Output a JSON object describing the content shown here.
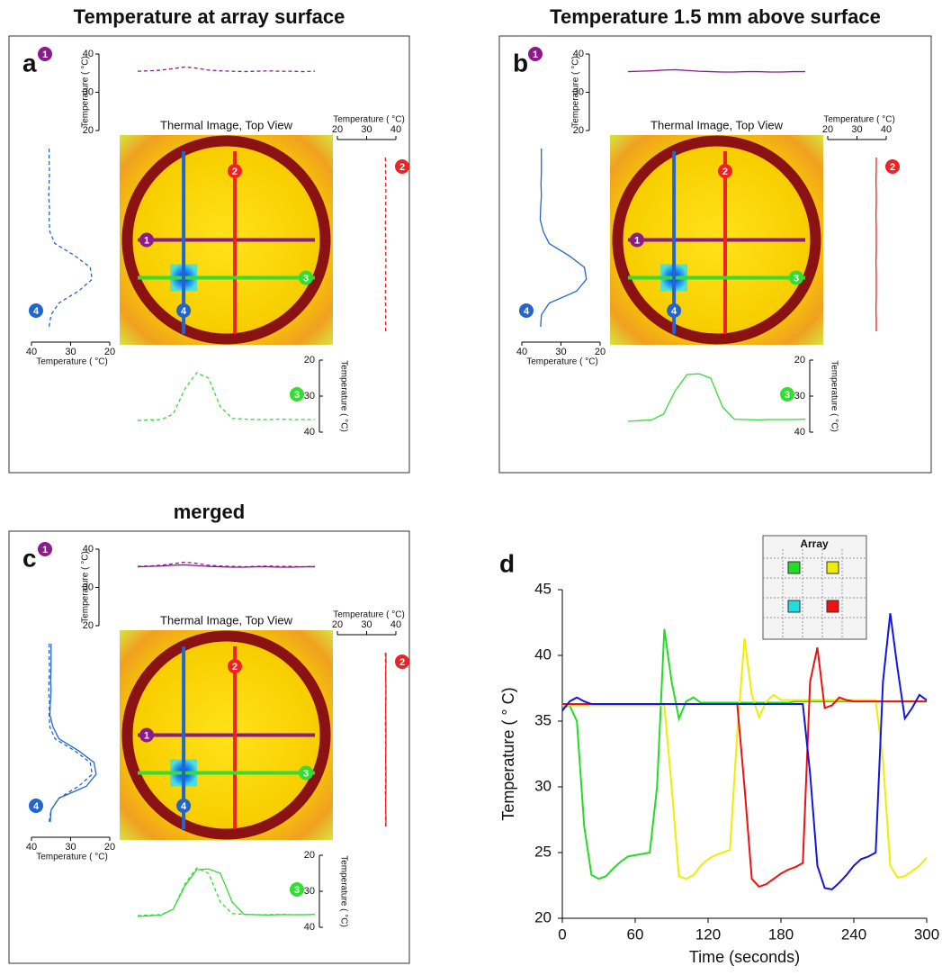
{
  "panels": [
    {
      "title": "Temperature at array surface",
      "letter": "a",
      "image_label": "Thermal Image, Top View",
      "axis_label": "Temperature ( °C)",
      "ticks": [
        20,
        30,
        40
      ],
      "line_style": "dashed",
      "lines": [
        {
          "label": "1",
          "color": "#8b1a8b",
          "values": [
            35.5,
            35.6,
            35.8,
            36.2,
            36.6,
            36.3,
            35.8,
            35.6,
            35.5,
            35.4,
            35.5,
            35.6,
            35.5,
            35.5,
            35.4,
            35.5
          ]
        },
        {
          "label": "2",
          "color": "#ee2222",
          "values": [
            36.4,
            36.5,
            36.5,
            36.6,
            36.5,
            36.5,
            36.4,
            36.5,
            36.5,
            36.6,
            36.5,
            36.5,
            36.4,
            36.5,
            36.5,
            36.5
          ]
        },
        {
          "label": "3",
          "color": "#33dd33",
          "values": [
            36.8,
            36.6,
            36.5,
            35,
            28,
            23.5,
            25,
            33,
            36.2,
            36.4,
            36.5,
            36.5,
            36.4,
            36.5,
            36.5,
            36.5
          ]
        },
        {
          "label": "4",
          "color": "#2266cc",
          "values": [
            35.5,
            35.5,
            35.4,
            35.5,
            35.6,
            35.4,
            35.5,
            35.3,
            34,
            29,
            25,
            24.5,
            28,
            33,
            35,
            35.5
          ]
        }
      ]
    },
    {
      "title": "Temperature 1.5 mm above surface",
      "letter": "b",
      "image_label": "Thermal Image, Top View",
      "axis_label": "Temperature ( °C)",
      "ticks": [
        20,
        30,
        40
      ],
      "line_style": "solid",
      "lines": [
        {
          "label": "1",
          "color": "#8b1a8b",
          "values": [
            35.4,
            35.5,
            35.6,
            35.8,
            35.9,
            35.7,
            35.5,
            35.4,
            35.3,
            35.3,
            35.4,
            35.4,
            35.3,
            35.3,
            35.4,
            35.4
          ]
        },
        {
          "label": "2",
          "color": "#ee2222",
          "values": [
            36.6,
            36.6,
            36.5,
            36.6,
            36.6,
            36.5,
            36.6,
            36.6,
            36.6,
            36.5,
            36.6,
            36.6,
            36.6,
            36.5,
            36.6,
            36.6
          ]
        },
        {
          "label": "3",
          "color": "#33dd33",
          "values": [
            37,
            36.8,
            36.6,
            35,
            28.5,
            24,
            23.8,
            25,
            33,
            36.4,
            36.5,
            36.6,
            36.5,
            36.5,
            36.5,
            36.4
          ]
        },
        {
          "label": "4",
          "color": "#2266cc",
          "values": [
            35,
            35,
            35,
            35.1,
            35,
            35.2,
            35.3,
            34.5,
            33,
            28,
            24,
            23.5,
            26,
            33,
            35,
            35.2
          ]
        }
      ]
    },
    {
      "title": "merged",
      "letter": "c",
      "image_label": "Thermal Image, Top View",
      "axis_label": "Temperature ( °C)",
      "ticks": [
        20,
        30,
        40
      ],
      "lines": [
        {
          "label": "1",
          "color": "#8b1a8b"
        },
        {
          "label": "2",
          "color": "#ee2222"
        },
        {
          "label": "3",
          "color": "#33dd33"
        },
        {
          "label": "4",
          "color": "#2266cc"
        }
      ]
    }
  ],
  "chart_data": {
    "type": "line",
    "letter": "d",
    "inset_title": "Array",
    "xlabel": "Time (seconds)",
    "ylabel": "Temperature ( ° C)",
    "x": [
      0,
      6,
      12,
      18,
      24,
      30,
      36,
      42,
      48,
      54,
      60,
      66,
      72,
      78,
      84,
      90,
      96,
      102,
      108,
      114,
      120,
      126,
      132,
      138,
      144,
      150,
      156,
      162,
      168,
      174,
      180,
      186,
      192,
      198,
      204,
      210,
      216,
      222,
      228,
      234,
      240,
      246,
      252,
      258,
      264,
      270,
      276,
      282,
      288,
      294,
      300
    ],
    "xlim": [
      0,
      300
    ],
    "xticks": [
      0,
      60,
      120,
      180,
      240,
      300
    ],
    "ylim": [
      20,
      45
    ],
    "yticks": [
      20,
      25,
      30,
      35,
      40,
      45
    ],
    "series": [
      {
        "color": "#22dd22",
        "values": [
          36.0,
          36.2,
          35.0,
          27.0,
          23.3,
          23.0,
          23.2,
          23.8,
          24.3,
          24.7,
          24.8,
          24.9,
          25.0,
          30.0,
          42.0,
          38.0,
          35.2,
          36.5,
          36.8,
          36.4,
          36.4,
          36.4,
          36.4,
          36.4,
          36.4,
          36.4,
          36.4,
          36.4,
          36.4,
          36.4,
          36.4,
          36.4,
          36.5,
          36.5,
          36.5,
          36.5,
          36.5,
          36.5,
          36.5,
          36.5,
          36.5,
          36.5,
          36.5,
          36.5,
          36.5,
          36.5,
          36.5,
          36.5,
          36.5,
          36.5,
          36.5
        ]
      },
      {
        "color": "#eeee00",
        "values": [
          36.2,
          36.2,
          36.2,
          36.2,
          36.2,
          36.2,
          36.2,
          36.2,
          36.2,
          36.2,
          36.2,
          36.2,
          36.2,
          36.2,
          36.2,
          30.0,
          23.2,
          23.0,
          23.3,
          24.0,
          24.5,
          24.8,
          25.0,
          25.2,
          34.0,
          41.3,
          37.0,
          35.3,
          36.5,
          37.0,
          36.6,
          36.6,
          36.6,
          36.6,
          36.6,
          36.6,
          36.6,
          36.6,
          36.6,
          36.6,
          36.6,
          36.6,
          36.6,
          36.6,
          32.0,
          24.0,
          23.1,
          23.2,
          23.6,
          24.0,
          24.6
        ]
      },
      {
        "color": "#ee1111",
        "values": [
          36.3,
          36.3,
          36.3,
          36.3,
          36.3,
          36.3,
          36.3,
          36.3,
          36.3,
          36.3,
          36.3,
          36.3,
          36.3,
          36.3,
          36.3,
          36.3,
          36.3,
          36.3,
          36.3,
          36.3,
          36.3,
          36.3,
          36.3,
          36.3,
          36.3,
          30.0,
          23.0,
          22.4,
          22.6,
          23.0,
          23.4,
          23.7,
          23.9,
          24.2,
          38.0,
          40.6,
          36.0,
          36.2,
          36.8,
          36.6,
          36.5,
          36.5,
          36.5,
          36.5,
          36.5,
          36.5,
          36.5,
          36.5,
          36.5,
          36.5,
          36.5
        ]
      },
      {
        "color": "#1515dd",
        "values": [
          35.8,
          36.5,
          36.8,
          36.5,
          36.3,
          36.3,
          36.3,
          36.3,
          36.3,
          36.3,
          36.3,
          36.3,
          36.3,
          36.3,
          36.3,
          36.3,
          36.3,
          36.3,
          36.3,
          36.3,
          36.3,
          36.3,
          36.3,
          36.3,
          36.3,
          36.3,
          36.3,
          36.3,
          36.3,
          36.3,
          36.3,
          36.3,
          36.3,
          36.3,
          31.0,
          24.0,
          22.3,
          22.2,
          22.7,
          23.3,
          24.0,
          24.5,
          24.7,
          25.0,
          38.0,
          43.2,
          39.0,
          35.2,
          36.0,
          37.0,
          36.6
        ]
      }
    ]
  }
}
